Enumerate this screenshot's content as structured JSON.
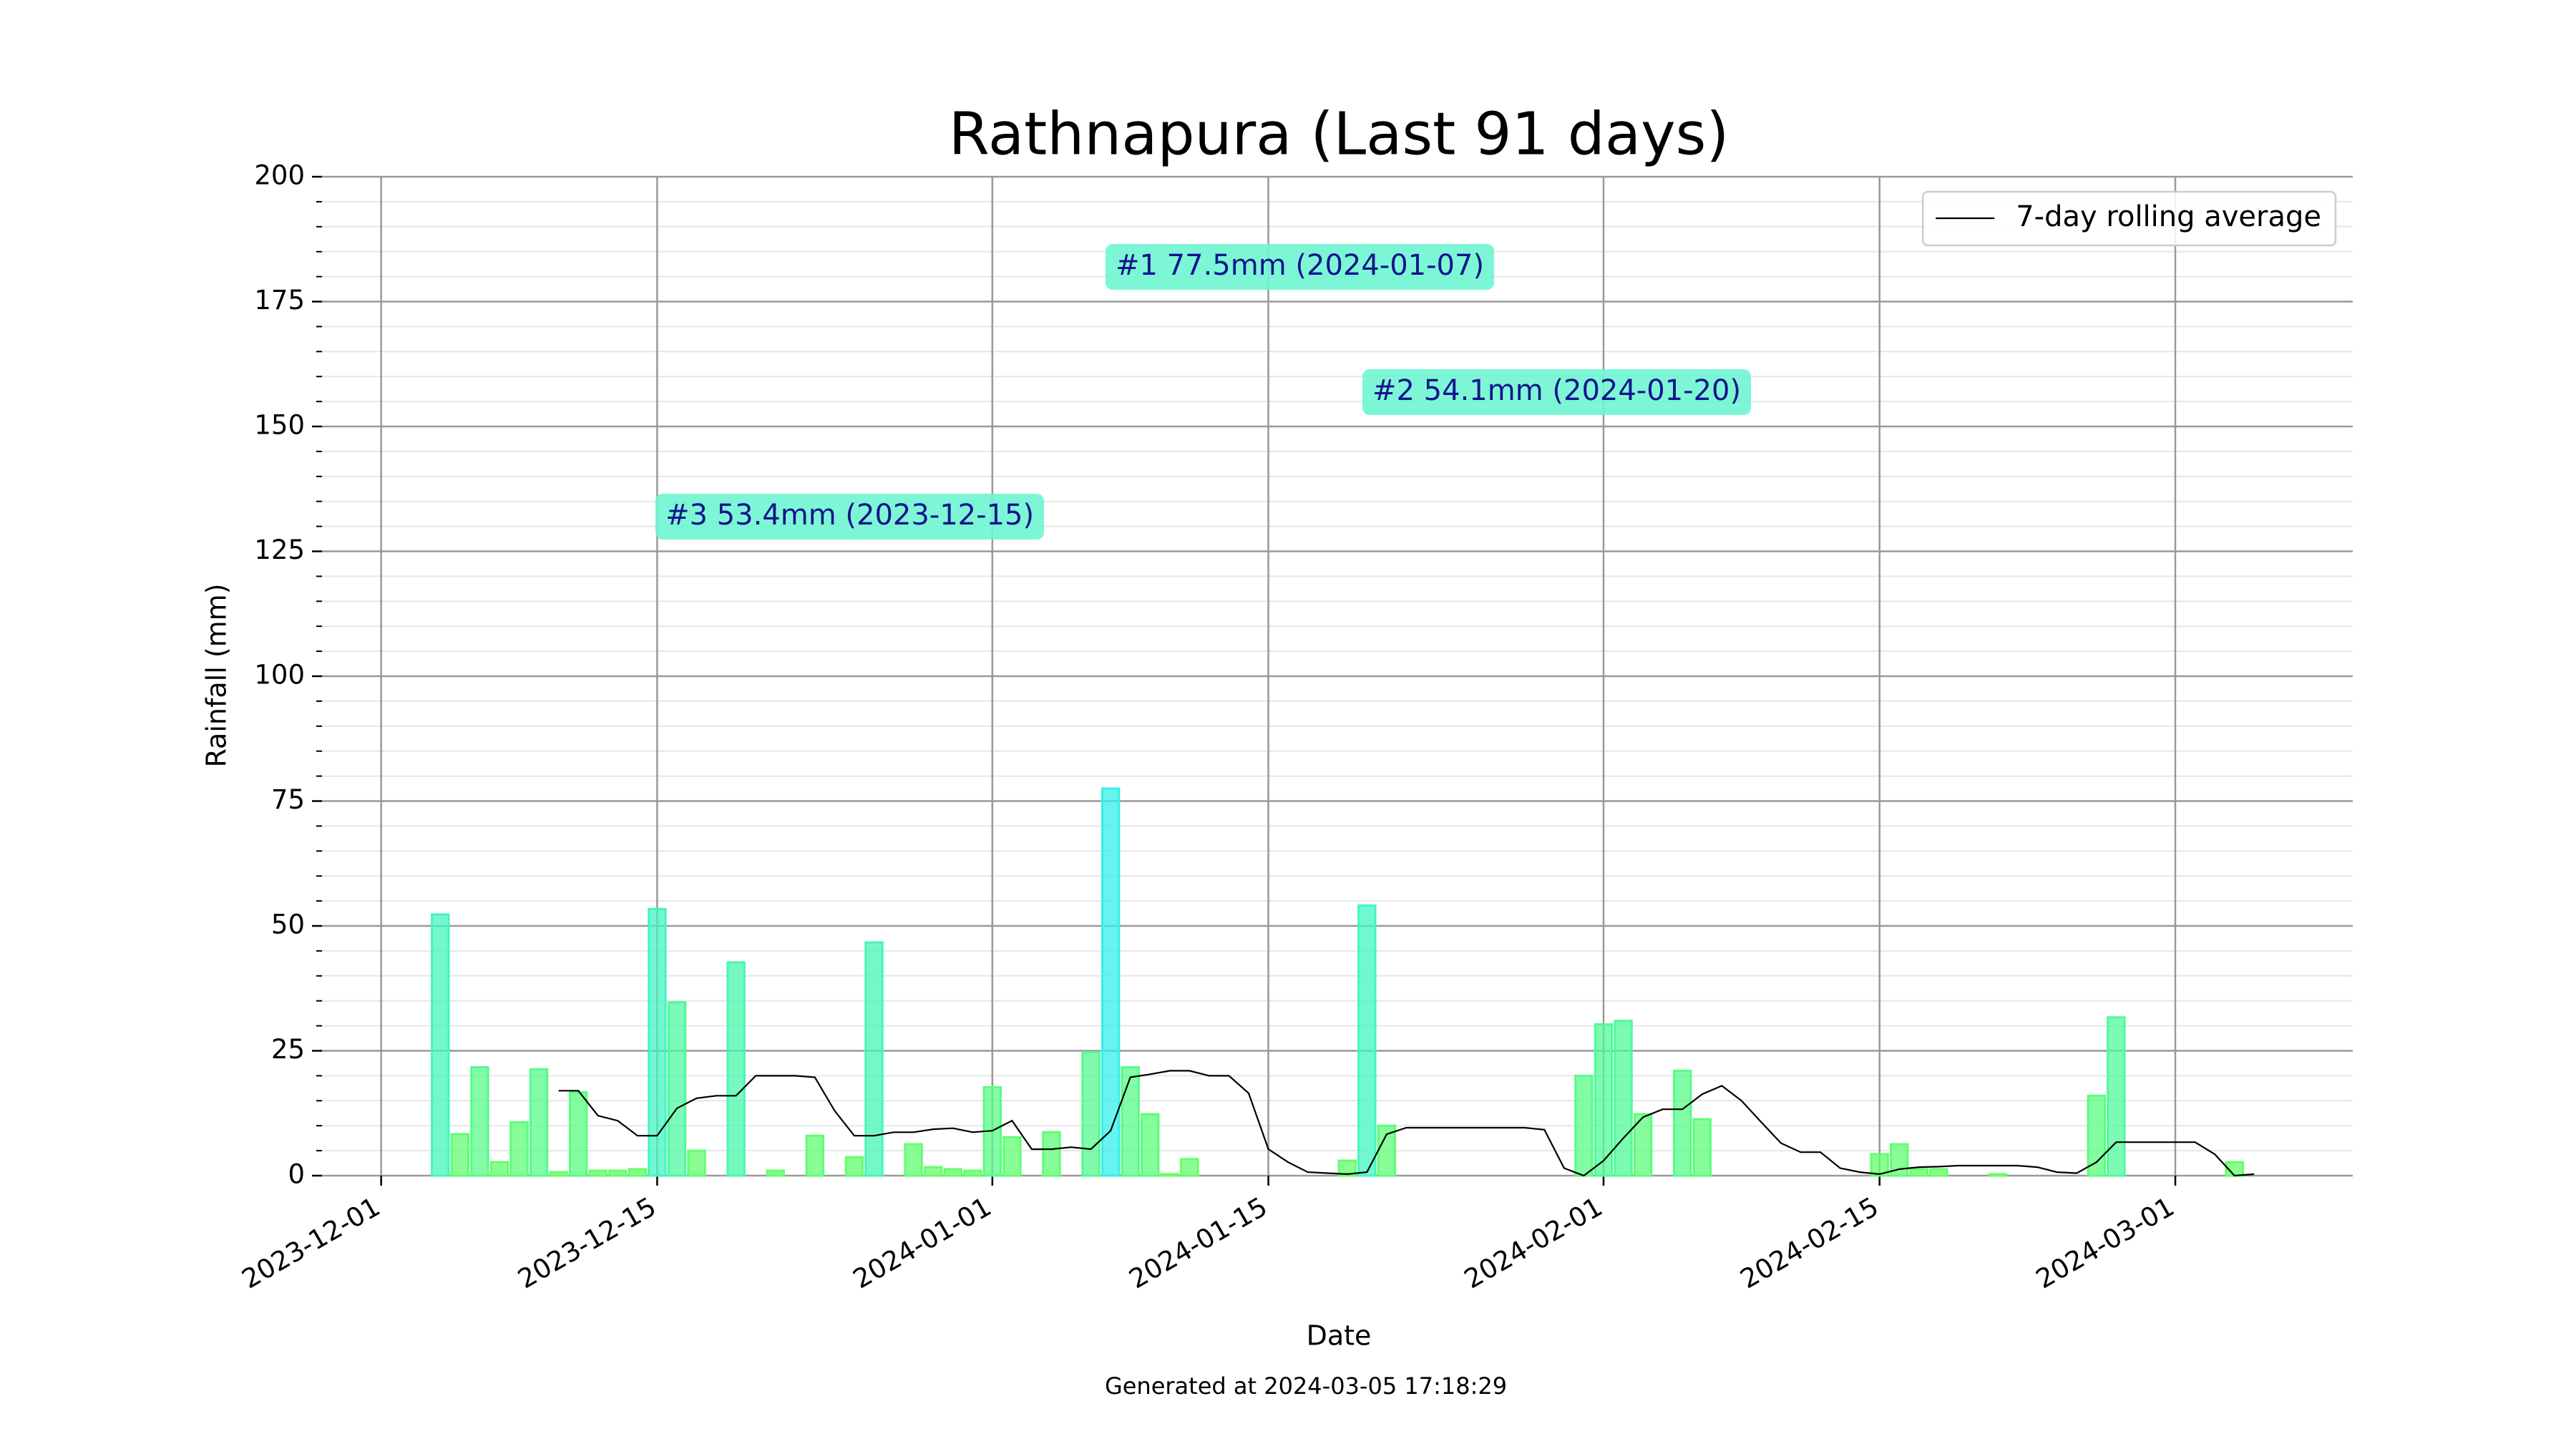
{
  "chart_data": {
    "type": "bar",
    "title": "Rathnapura (Last 91 days)",
    "x_label": "Date",
    "y_label": "Rainfall (mm)",
    "footer": "Generated at 2024-03-05 17:18:29",
    "x": [
      "2023-12-04",
      "2023-12-05",
      "2023-12-06",
      "2023-12-07",
      "2023-12-08",
      "2023-12-09",
      "2023-12-10",
      "2023-12-11",
      "2023-12-12",
      "2023-12-13",
      "2023-12-14",
      "2023-12-15",
      "2023-12-16",
      "2023-12-17",
      "2023-12-18",
      "2023-12-19",
      "2023-12-20",
      "2023-12-21",
      "2023-12-22",
      "2023-12-23",
      "2023-12-24",
      "2023-12-25",
      "2023-12-26",
      "2023-12-27",
      "2023-12-28",
      "2023-12-29",
      "2023-12-30",
      "2023-12-31",
      "2024-01-01",
      "2024-01-02",
      "2024-01-03",
      "2024-01-04",
      "2024-01-05",
      "2024-01-06",
      "2024-01-07",
      "2024-01-08",
      "2024-01-09",
      "2024-01-10",
      "2024-01-11",
      "2024-01-12",
      "2024-01-13",
      "2024-01-14",
      "2024-01-15",
      "2024-01-16",
      "2024-01-17",
      "2024-01-18",
      "2024-01-19",
      "2024-01-20",
      "2024-01-21",
      "2024-01-22",
      "2024-01-23",
      "2024-01-24",
      "2024-01-25",
      "2024-01-26",
      "2024-01-27",
      "2024-01-28",
      "2024-01-29",
      "2024-01-30",
      "2024-01-31",
      "2024-02-01",
      "2024-02-02",
      "2024-02-03",
      "2024-02-04",
      "2024-02-05",
      "2024-02-06",
      "2024-02-07",
      "2024-02-08",
      "2024-02-09",
      "2024-02-10",
      "2024-02-11",
      "2024-02-12",
      "2024-02-13",
      "2024-02-14",
      "2024-02-15",
      "2024-02-16",
      "2024-02-17",
      "2024-02-18",
      "2024-02-19",
      "2024-02-20",
      "2024-02-21",
      "2024-02-22",
      "2024-02-23",
      "2024-02-24",
      "2024-02-25",
      "2024-02-26",
      "2024-02-27",
      "2024-02-28",
      "2024-02-29",
      "2024-03-01",
      "2024-03-02",
      "2024-03-03",
      "2024-03-04",
      "2024-03-05"
    ],
    "values": [
      52.3,
      8.3,
      21.7,
      2.7,
      10.7,
      21.3,
      0.7,
      16.7,
      1.0,
      1.0,
      1.3,
      53.4,
      34.7,
      5,
      0,
      42.7,
      0,
      1,
      0,
      8,
      0,
      3.7,
      46.7,
      0,
      6.3,
      1.7,
      1.3,
      1.0,
      17.7,
      7.7,
      0,
      8.7,
      0,
      24.7,
      77.5,
      21.7,
      12.3,
      0.3,
      3.3,
      0,
      0,
      0,
      0,
      0,
      0,
      0,
      3,
      54.1,
      10,
      0,
      0,
      0,
      0,
      0,
      0,
      0,
      0,
      0,
      20,
      30.3,
      31,
      12.3,
      0,
      21,
      11.3,
      0,
      0,
      0,
      0,
      0,
      0,
      0,
      0,
      4.3,
      6.3,
      1.3,
      1.3,
      0,
      0,
      0.3,
      0,
      0,
      0,
      0,
      16,
      31.7,
      0,
      0,
      0,
      0,
      0,
      2.7,
      0
    ],
    "color_low": "#66ff66",
    "color_high": "#33f0e8",
    "series": [
      {
        "name": "7-day rolling average",
        "color": "#000000",
        "values": [
          null,
          null,
          null,
          null,
          null,
          null,
          17,
          17,
          12,
          11,
          8,
          8,
          13.5,
          15.5,
          16,
          16,
          20,
          20,
          20,
          19.7,
          13,
          8,
          8,
          8.7,
          8.7,
          9.3,
          9.5,
          8.7,
          9,
          11,
          5.3,
          5.3,
          5.7,
          5.3,
          9,
          19.7,
          20.3,
          21,
          21,
          20,
          20,
          16.5,
          5.3,
          2.7,
          0.7,
          0.5,
          0.3,
          0.7,
          8.3,
          9.6,
          9.6,
          9.6,
          9.6,
          9.6,
          9.6,
          9.6,
          9.2,
          1.5,
          0,
          3,
          7.5,
          11.7,
          13.3,
          13.3,
          16.3,
          18,
          15,
          10.7,
          6.5,
          4.7,
          4.7,
          1.5,
          0.7,
          0.3,
          1.3,
          1.7,
          1.8,
          2,
          2,
          2,
          2,
          1.7,
          0.7,
          0.5,
          2.7,
          6.7,
          6.7,
          6.7,
          6.7,
          6.7,
          4.3,
          0,
          0.3
        ]
      }
    ],
    "annotations": [
      "#1 77.5mm (2024-01-07)",
      "#2 54.1mm (2024-01-20)",
      "#3 53.4mm (2023-12-15)"
    ],
    "xlim": [
      "2023-11-28",
      "2024-03-10"
    ],
    "xticks": [
      "2023-12-01",
      "2023-12-15",
      "2024-01-01",
      "2024-01-15",
      "2024-02-01",
      "2024-02-15",
      "2024-03-01"
    ],
    "ylim": [
      0,
      200
    ],
    "yticks": [
      0,
      25,
      50,
      75,
      100,
      125,
      150,
      175,
      200
    ],
    "yticks_minor": [
      5,
      10,
      15,
      20,
      30,
      35,
      40,
      45,
      55,
      60,
      65,
      70,
      80,
      85,
      90,
      95,
      105,
      110,
      115,
      120,
      130,
      135,
      140,
      145,
      155,
      160,
      165,
      170,
      180,
      185,
      190,
      195
    ],
    "grid": true,
    "legend": "upper right"
  }
}
